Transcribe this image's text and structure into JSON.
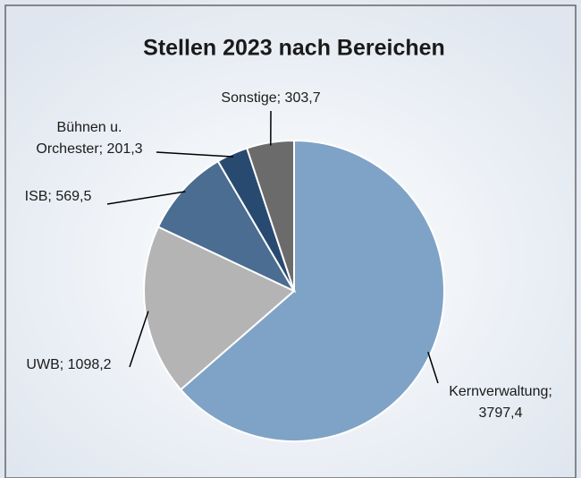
{
  "chart_data": {
    "type": "pie",
    "title": "Stellen 2023 nach Bereichen",
    "values": [
      3797.4,
      1098.2,
      569.5,
      201.3,
      303.7
    ],
    "value_labels": [
      "Kernverwaltung;\n3797,4",
      "UWB; 1098,2",
      "ISB; 569,5",
      "Bühnen u.\nOrchester; 201,3",
      "Sonstige; 303,7"
    ],
    "colors": [
      "#7fa3c6",
      "#b4b4b4",
      "#4a6d91",
      "#294a70",
      "#6b6b6b"
    ]
  }
}
